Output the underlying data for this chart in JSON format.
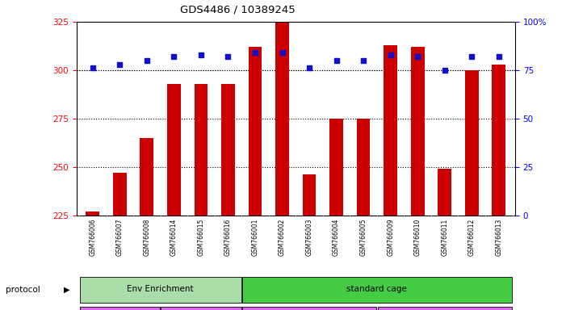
{
  "title": "GDS4486 / 10389245",
  "samples": [
    "GSM766006",
    "GSM766007",
    "GSM766008",
    "GSM766014",
    "GSM766015",
    "GSM766016",
    "GSM766001",
    "GSM766002",
    "GSM766003",
    "GSM766004",
    "GSM766005",
    "GSM766009",
    "GSM766010",
    "GSM766011",
    "GSM766012",
    "GSM766013"
  ],
  "counts": [
    227,
    247,
    265,
    293,
    293,
    293,
    312,
    325,
    246,
    275,
    275,
    313,
    312,
    249,
    300,
    303
  ],
  "percentiles": [
    76,
    78,
    80,
    82,
    83,
    82,
    84,
    84,
    76,
    80,
    80,
    83,
    82,
    75,
    82,
    82
  ],
  "ylim_left": [
    225,
    325
  ],
  "ylim_right": [
    0,
    100
  ],
  "yticks_left": [
    225,
    250,
    275,
    300,
    325
  ],
  "yticks_right": [
    0,
    25,
    50,
    75,
    100
  ],
  "bar_color": "#cc0000",
  "dot_color": "#1111cc",
  "bar_width": 0.5,
  "protocol_color_light": "#aaddaa",
  "protocol_color": "#44cc44",
  "genotype_color": "#dd66ee",
  "legend_count_color": "#cc0000",
  "legend_dot_color": "#1111cc"
}
